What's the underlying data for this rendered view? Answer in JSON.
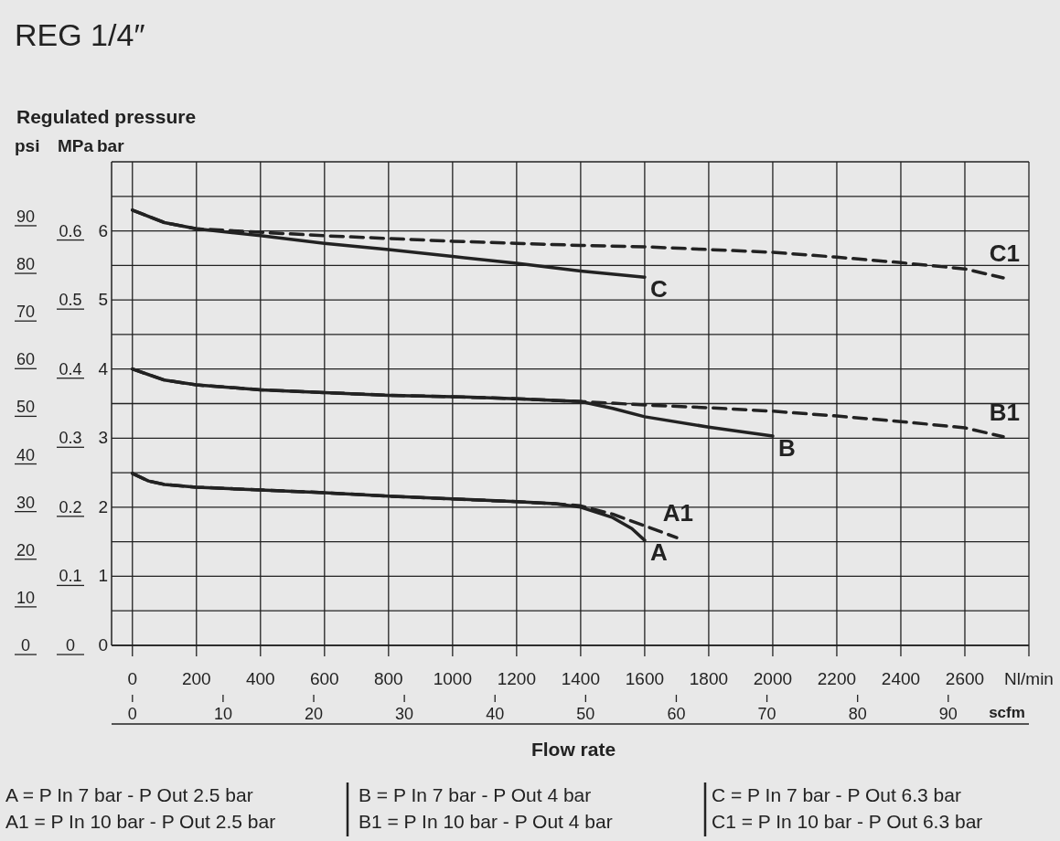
{
  "chart_data": {
    "type": "line",
    "title": "REG 1/4″",
    "subtitle": "Regulated pressure",
    "xlabel": "Flow rate",
    "ylabel": "bar",
    "y2label": "MPa",
    "y3label": "psi",
    "x2label": "scfm",
    "xlim": [
      -65,
      2800
    ],
    "xticks": [
      0,
      200,
      400,
      600,
      800,
      1000,
      1200,
      1400,
      1600,
      1800,
      2000,
      2200,
      2400,
      2600,
      {
        "value": 2800,
        "label": "Nl/min"
      }
    ],
    "x2lim": [
      -2.3,
      98.9
    ],
    "x2ticks": [
      0,
      10,
      20,
      30,
      40,
      50,
      60,
      70,
      80,
      90
    ],
    "ylim": [
      0,
      7
    ],
    "yticks": [
      0,
      {
        "value": 0.5,
        "label": null
      },
      1,
      {
        "value": 1.5,
        "label": null
      },
      2,
      {
        "value": 2.5,
        "label": null
      },
      3,
      {
        "value": 3.5,
        "label": null
      },
      4,
      {
        "value": 4.5,
        "label": null
      },
      5,
      {
        "value": 5.5,
        "label": null
      },
      6,
      {
        "value": 6.5,
        "label": null
      },
      {
        "value": 7,
        "label": null
      }
    ],
    "y2lim": [
      0,
      0.7
    ],
    "y2ticks": [
      0,
      0.1,
      0.2,
      0.3,
      0.4,
      0.5,
      0.6
    ],
    "y3lim": [
      0,
      101.5
    ],
    "y3ticks": [
      0,
      10,
      20,
      30,
      40,
      50,
      60,
      70,
      80,
      90
    ],
    "grid": true,
    "marker": "none",
    "line_style": "solid",
    "series": [
      {
        "name": "C",
        "color": "#222222",
        "x": [
          0,
          100,
          200,
          400,
          600,
          800,
          1000,
          1200,
          1400,
          1600
        ],
        "values": [
          6.3,
          6.12,
          6.03,
          5.93,
          5.82,
          5.73,
          5.63,
          5.53,
          5.42,
          5.33
        ]
      },
      {
        "name": "C1",
        "color": "#222222",
        "line_style": "dashed",
        "x": [
          0,
          100,
          200,
          400,
          600,
          800,
          1000,
          1200,
          1400,
          1600,
          1800,
          2000,
          2200,
          2400,
          2600,
          2720
        ],
        "values": [
          6.3,
          6.12,
          6.03,
          5.98,
          5.93,
          5.89,
          5.85,
          5.82,
          5.79,
          5.77,
          5.73,
          5.69,
          5.62,
          5.54,
          5.45,
          5.32
        ]
      },
      {
        "name": "B",
        "color": "#222222",
        "x": [
          0,
          50,
          100,
          200,
          400,
          600,
          800,
          1000,
          1200,
          1400,
          1500,
          1600,
          1800,
          2000
        ],
        "values": [
          4.0,
          3.92,
          3.84,
          3.77,
          3.7,
          3.66,
          3.62,
          3.6,
          3.57,
          3.53,
          3.43,
          3.31,
          3.16,
          3.03
        ]
      },
      {
        "name": "B1",
        "color": "#222222",
        "line_style": "dashed",
        "x": [
          0,
          50,
          100,
          200,
          400,
          600,
          800,
          1000,
          1200,
          1400,
          1600,
          1800,
          2000,
          2200,
          2400,
          2600,
          2720
        ],
        "values": [
          4.0,
          3.92,
          3.84,
          3.77,
          3.7,
          3.66,
          3.62,
          3.6,
          3.57,
          3.53,
          3.48,
          3.44,
          3.39,
          3.32,
          3.24,
          3.15,
          3.02
        ]
      },
      {
        "name": "A",
        "color": "#222222",
        "x": [
          0,
          50,
          100,
          200,
          400,
          600,
          800,
          1000,
          1200,
          1320,
          1400,
          1500,
          1560,
          1600
        ],
        "values": [
          2.49,
          2.38,
          2.33,
          2.29,
          2.25,
          2.21,
          2.16,
          2.12,
          2.08,
          2.05,
          2.0,
          1.85,
          1.69,
          1.52
        ]
      },
      {
        "name": "A1",
        "color": "#222222",
        "line_style": "dashed",
        "x": [
          0,
          50,
          100,
          200,
          400,
          600,
          800,
          1000,
          1200,
          1320,
          1400,
          1500,
          1600,
          1700
        ],
        "values": [
          2.49,
          2.38,
          2.33,
          2.29,
          2.25,
          2.21,
          2.16,
          2.12,
          2.08,
          2.05,
          2.02,
          1.9,
          1.73,
          1.56
        ]
      }
    ],
    "annotations": [
      "A = P In 7 bar - P Out 2.5 bar",
      "A1 = P In 10 bar - P Out 2.5 bar",
      "B = P In 7 bar - P Out 4 bar",
      "B1 = P In 10 bar - P Out 4 bar",
      "C = P In 7 bar - P Out 6.3 bar",
      "C1 = P In 10 bar - P Out 6.3 bar"
    ]
  }
}
